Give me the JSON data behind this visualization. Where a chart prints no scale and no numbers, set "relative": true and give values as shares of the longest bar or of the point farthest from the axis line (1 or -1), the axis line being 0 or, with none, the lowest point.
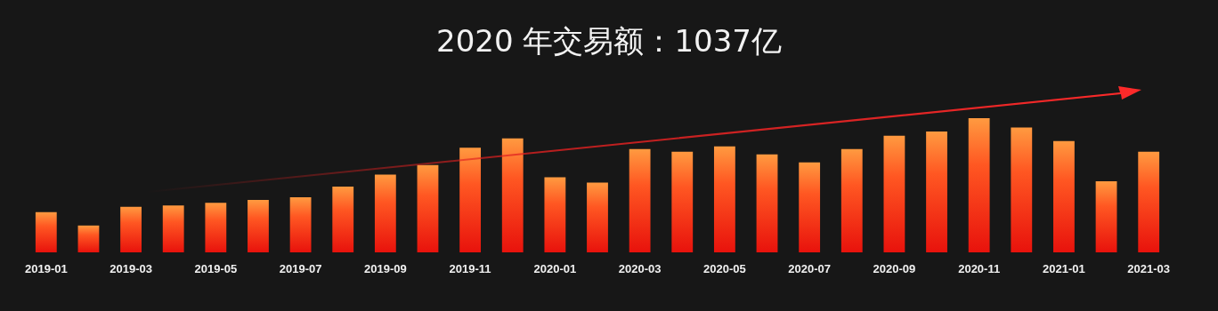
{
  "chart_data": {
    "type": "bar",
    "title": "2020 年交易额：1037亿",
    "relative": true,
    "color": "#ff5722",
    "categories": [
      "2019-01",
      null,
      "2019-03",
      null,
      "2019-05",
      null,
      "2019-07",
      null,
      "2019-09",
      null,
      "2019-11",
      null,
      "2020-01",
      null,
      "2020-03",
      null,
      "2020-05",
      null,
      "2020-07",
      null,
      "2020-09",
      null,
      "2020-11",
      null,
      "2021-01",
      null,
      "2021-03"
    ],
    "values": [
      0.3,
      0.2,
      0.34,
      0.35,
      0.37,
      0.39,
      0.41,
      0.49,
      0.58,
      0.65,
      0.78,
      0.85,
      0.56,
      0.52,
      0.77,
      0.75,
      0.79,
      0.73,
      0.67,
      0.77,
      0.87,
      0.9,
      1,
      0.93,
      0.83,
      0.53,
      0.75
    ]
  }
}
